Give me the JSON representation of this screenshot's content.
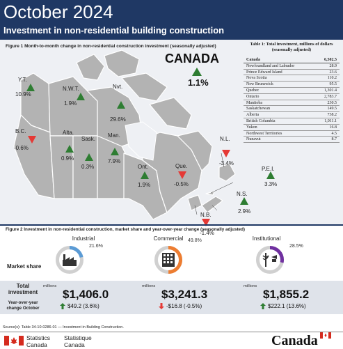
{
  "header": {
    "title": "October 2024",
    "subtitle": "Investment in non-residential building construction"
  },
  "figure1": {
    "caption": "Figure 1  Month-to-month change in non-residential construction investment (seasonally adjusted)",
    "canada": {
      "label": "CANADA",
      "value": "1.1%",
      "direction": "up"
    },
    "regions": [
      {
        "label": "Y.T.",
        "value": "10.9%",
        "direction": "up"
      },
      {
        "label": "N.W.T.",
        "value": "1.9%",
        "direction": "up"
      },
      {
        "label": "Nvt.",
        "value": "29.6%",
        "direction": "up"
      },
      {
        "label": "B.C.",
        "value": "-0.6%",
        "direction": "down"
      },
      {
        "label": "Alta.",
        "value": "0.9%",
        "direction": "up"
      },
      {
        "label": "Sask.",
        "value": "0.3%",
        "direction": "up"
      },
      {
        "label": "Man.",
        "value": "7.9%",
        "direction": "up"
      },
      {
        "label": "Ont.",
        "value": "1.9%",
        "direction": "up"
      },
      {
        "label": "Que.",
        "value": "-0.5%",
        "direction": "down"
      },
      {
        "label": "N.L.",
        "value": "-3.4%",
        "direction": "down"
      },
      {
        "label": "P.E.I.",
        "value": "3.3%",
        "direction": "up"
      },
      {
        "label": "N.S.",
        "value": "2.9%",
        "direction": "up"
      },
      {
        "label": "N.B.",
        "value": "-1.4%",
        "direction": "down"
      }
    ],
    "colors": {
      "up": "#2e7d32",
      "down": "#e53935",
      "land": "#b3b3b3",
      "water": "#eef0f4"
    }
  },
  "table1": {
    "title": "Table 1: Total investment, millions of dollars (seasonally adjusted)",
    "rows": [
      {
        "name": "Canada",
        "value": "6,502.5",
        "bold": true
      },
      {
        "name": "Newfoundland and Labrador",
        "value": "28.9"
      },
      {
        "name": "Prince Edward Island",
        "value": "23.6"
      },
      {
        "name": "Nova Scotia",
        "value": "110.2"
      },
      {
        "name": "New Brunswick",
        "value": "95.5"
      },
      {
        "name": "Quebec",
        "value": "1,301.4"
      },
      {
        "name": "Ontario",
        "value": "2,783.7"
      },
      {
        "name": "Manitoba",
        "value": "230.5"
      },
      {
        "name": "Saskatchewan",
        "value": "149.5"
      },
      {
        "name": "Alberta",
        "value": "738.2"
      },
      {
        "name": "British Columbia",
        "value": "1,011.1"
      },
      {
        "name": "Yukon",
        "value": "16.8"
      },
      {
        "name": "Northwest Territories",
        "value": "4.5"
      },
      {
        "name": "Nunavut",
        "value": "8.7"
      }
    ]
  },
  "figure2": {
    "caption": "Figure 2 Investment in non-residential construction,  market share and year-over-year change (seasonally adjusted)",
    "market_share_label": "Market share",
    "total_investment_label": "Total investment",
    "yoy_label": "Year-over-year change October",
    "millions_label": "millions",
    "sectors": [
      {
        "name": "Industrial",
        "share_label": "21.6%",
        "share": 21.6,
        "color": "#5b9bd5",
        "icon": "factory-icon",
        "total": "$1,406.0",
        "yoy": "$49.2 (3.6%)",
        "direction": "up"
      },
      {
        "name": "Commercial",
        "share_label": "49.8%",
        "share": 49.8,
        "color": "#ed7d31",
        "icon": "office-building-icon",
        "total": "$3,241.3",
        "yoy": "-$16.8 (-0.5%)",
        "direction": "down"
      },
      {
        "name": "Institutional",
        "share_label": "28.5%",
        "share": 28.5,
        "color": "#7030a0",
        "icon": "caduceus-graduation-icon",
        "total": "$1,855.2",
        "yoy": "$222.1 (13.6%)",
        "direction": "up"
      }
    ]
  },
  "footer": {
    "source": "Source(s): Table 34-10-0286-01 — Investment in Building Construction.",
    "statcan_en": [
      "Statistics",
      "Canada"
    ],
    "statcan_fr": [
      "Statistique",
      "Canada"
    ],
    "wordmark": "Canada"
  }
}
